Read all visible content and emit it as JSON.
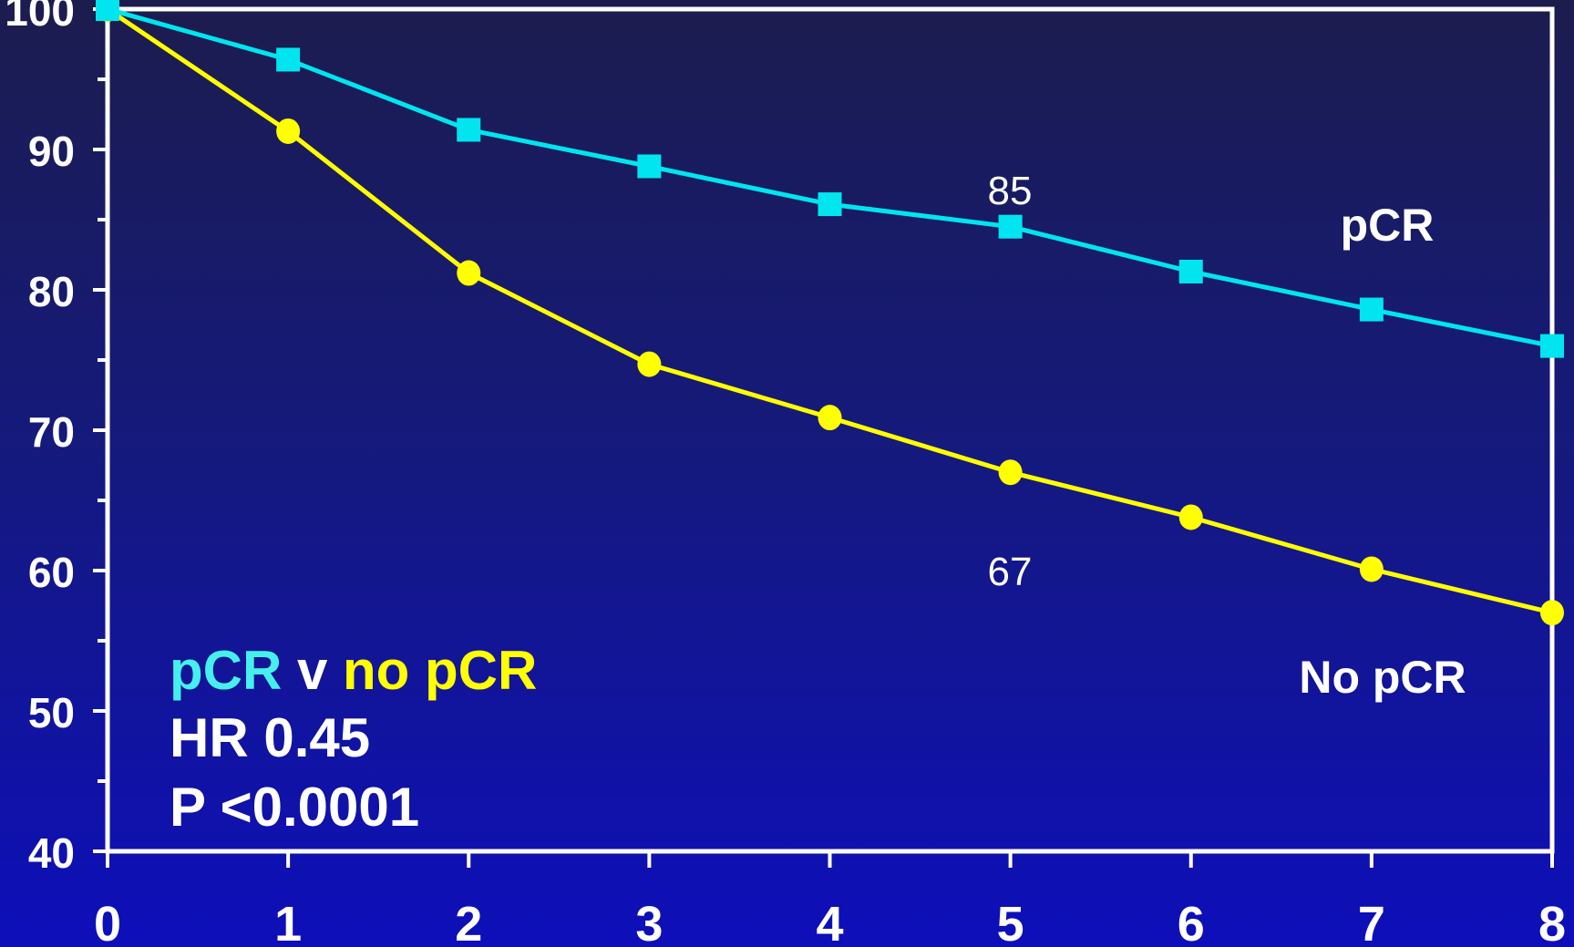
{
  "chart_data": {
    "type": "line",
    "x": [
      0,
      1,
      2,
      3,
      4,
      5,
      6,
      7,
      8
    ],
    "xlim": [
      0,
      8
    ],
    "ylim": [
      40,
      100
    ],
    "x_ticks": [
      "0",
      "1",
      "2",
      "3",
      "4",
      "5",
      "6",
      "7",
      "8"
    ],
    "y_ticks": [
      "40",
      "50",
      "60",
      "70",
      "80",
      "90",
      "100"
    ],
    "grid": false,
    "series": [
      {
        "name": "pCR",
        "color": "#00e5ef",
        "marker": "square",
        "values": [
          100,
          96.4,
          91.4,
          88.8,
          86.1,
          84.5,
          81.3,
          78.6,
          76.0
        ]
      },
      {
        "name": "No pCR",
        "color": "#ffff00",
        "marker": "circle",
        "values": [
          100,
          91.3,
          81.2,
          74.7,
          70.9,
          67.0,
          63.8,
          60.1,
          57.0
        ]
      }
    ],
    "annotations": {
      "pcr_value_label": "85",
      "nopcr_value_label": "67",
      "pcr_series_label": "pCR",
      "nopcr_series_label": "No pCR",
      "comparison_pcr": "pCR",
      "comparison_v": " v ",
      "comparison_nopcr": "no pCR",
      "hazard_ratio": "HR 0.45",
      "p_value": "P <0.0001"
    },
    "colors": {
      "axis": "#ffffff",
      "pcr": "#00e5ef",
      "nopcr": "#ffff00",
      "text": "#ffffff"
    }
  }
}
